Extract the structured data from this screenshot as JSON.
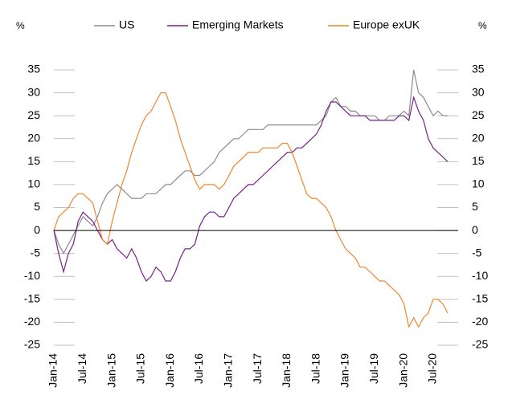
{
  "chart_data": {
    "type": "line",
    "y_label": "%",
    "y2_label": "%",
    "categories": [
      "Jan-14",
      null,
      null,
      null,
      null,
      null,
      "Jul-14",
      null,
      null,
      null,
      null,
      null,
      "Jan-15",
      null,
      null,
      null,
      null,
      null,
      "Jul-15",
      null,
      null,
      null,
      null,
      null,
      "Jan-16",
      null,
      null,
      null,
      null,
      null,
      "Jul-16",
      null,
      null,
      null,
      null,
      null,
      "Jan-17",
      null,
      null,
      null,
      null,
      null,
      "Jul-17",
      null,
      null,
      null,
      null,
      null,
      "Jan-18",
      null,
      null,
      null,
      null,
      null,
      "Jul-18",
      null,
      null,
      null,
      null,
      null,
      "Jan-19",
      null,
      null,
      null,
      null,
      null,
      "Jul-19",
      null,
      null,
      null,
      null,
      null,
      "Jan-20",
      null,
      null,
      null,
      null,
      null,
      "Jul-20",
      null,
      null,
      null
    ],
    "series": [
      {
        "name": "US",
        "color": "#8c8c8c",
        "values": [
          0,
          -3,
          -5,
          -3,
          -1,
          1,
          3,
          2,
          1,
          3,
          6,
          8,
          9,
          10,
          9,
          8,
          7,
          7,
          7,
          8,
          8,
          8,
          9,
          10,
          10,
          11,
          12,
          13,
          13,
          12,
          12,
          13,
          14,
          15,
          17,
          18,
          19,
          20,
          20,
          21,
          22,
          22,
          22,
          22,
          23,
          23,
          23,
          23,
          23,
          23,
          23,
          23,
          23,
          23,
          23,
          24,
          25,
          28,
          29,
          27,
          27,
          26,
          26,
          25,
          25,
          25,
          25,
          24,
          24,
          25,
          25,
          25,
          26,
          25,
          35,
          30,
          29,
          27,
          25,
          26,
          25,
          25
        ]
      },
      {
        "name": "Emerging Markets",
        "color": "#7b1f8c",
        "values": [
          0,
          -5,
          -9,
          -5,
          -3,
          2,
          4,
          3,
          2,
          0,
          -2,
          -3,
          -2,
          -4,
          -5,
          -6,
          -4,
          -6,
          -9,
          -11,
          -10,
          -8,
          -9,
          -11,
          -11,
          -9,
          -6,
          -4,
          -4,
          -3,
          1,
          3,
          4,
          4,
          3,
          3,
          5,
          7,
          8,
          9,
          10,
          10,
          11,
          12,
          13,
          14,
          15,
          16,
          17,
          17,
          18,
          18,
          19,
          20,
          21,
          23,
          26,
          28,
          28,
          27,
          26,
          25,
          25,
          25,
          25,
          24,
          24,
          24,
          24,
          24,
          24,
          25,
          25,
          24,
          29,
          26,
          24,
          20,
          18,
          17,
          16,
          15
        ]
      },
      {
        "name": "Europe exUK",
        "color": "#f0862e",
        "values": [
          0,
          3,
          4,
          5,
          7,
          8,
          8,
          7,
          6,
          2,
          -2,
          -3,
          2,
          6,
          10,
          13,
          17,
          20,
          23,
          25,
          26,
          28,
          30,
          30,
          27,
          24,
          20,
          17,
          14,
          11,
          9,
          10,
          10,
          10,
          9,
          10,
          12,
          14,
          15,
          16,
          17,
          17,
          17,
          18,
          18,
          18,
          18,
          19,
          19,
          17,
          14,
          11,
          8,
          7,
          7,
          6,
          5,
          3,
          0,
          -2,
          -4,
          -5,
          -6,
          -8,
          -8,
          -9,
          -10,
          -11,
          -11,
          -12,
          -13,
          -14,
          -16,
          -21,
          -19,
          -21,
          -19,
          -18,
          -15,
          -15,
          -16,
          -18
        ]
      }
    ],
    "ylim": [
      -25,
      35
    ],
    "yticks": [
      -25,
      -20,
      -15,
      -10,
      -5,
      0,
      5,
      10,
      15,
      20,
      25,
      30,
      35
    ],
    "y2lim": [
      -25,
      35
    ],
    "y2ticks": [
      -25,
      -20,
      -15,
      -10,
      -5,
      0,
      5,
      10,
      15,
      20,
      25,
      30,
      35
    ],
    "zero_line": true
  }
}
